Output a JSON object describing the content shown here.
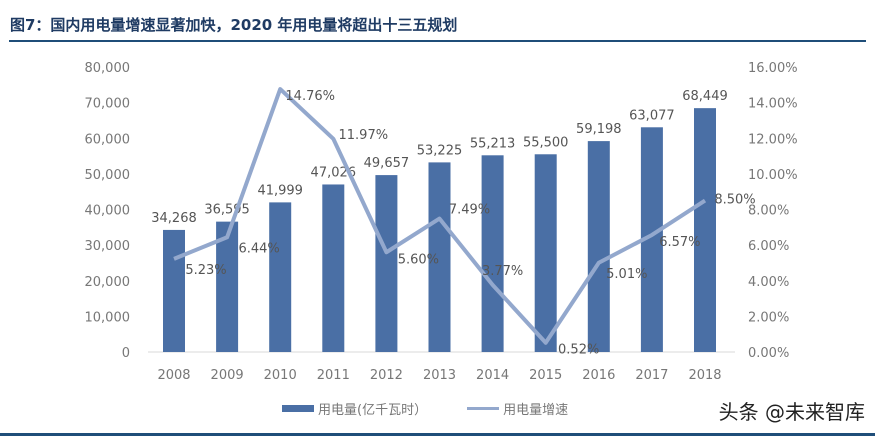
{
  "title": "图7：国内用电量增速显著加快，2020 年用电量将超出十三五规划",
  "watermark": "头条 @未来智库",
  "chart_data": {
    "type": "bar+line",
    "categories": [
      "2008",
      "2009",
      "2010",
      "2011",
      "2012",
      "2013",
      "2014",
      "2015",
      "2016",
      "2017",
      "2018"
    ],
    "series": [
      {
        "name": "用电量(亿千瓦时）",
        "type": "bar",
        "axis": "left",
        "color": "#4a6fa5",
        "values": [
          34268,
          36595,
          41999,
          47026,
          49657,
          53225,
          55213,
          55500,
          59198,
          63077,
          68449
        ],
        "labels": [
          "34,268",
          "36,595",
          "41,999",
          "47,026",
          "49,657",
          "53,225",
          "55,213",
          "55,500",
          "59,198",
          "63,077",
          "68,449"
        ]
      },
      {
        "name": "用电量增速",
        "type": "line",
        "axis": "right",
        "color": "#93a8cd",
        "values": [
          5.23,
          6.44,
          14.76,
          11.97,
          5.6,
          7.49,
          3.77,
          0.52,
          5.01,
          6.57,
          8.5
        ],
        "labels": [
          "5.23%",
          "6.44%",
          "14.76%",
          "11.97%",
          "5.60%",
          "7.49%",
          "3.77%",
          "0.52%",
          "5.01%",
          "6.57%",
          "8.50%"
        ]
      }
    ],
    "y_left": {
      "range": [
        0,
        80000
      ],
      "ticks": [
        "0",
        "10,000",
        "20,000",
        "30,000",
        "40,000",
        "50,000",
        "60,000",
        "70,000",
        "80,000"
      ]
    },
    "y_right": {
      "range": [
        0,
        16
      ],
      "ticks": [
        "0.00%",
        "2.00%",
        "4.00%",
        "6.00%",
        "8.00%",
        "10.00%",
        "12.00%",
        "14.00%",
        "16.00%"
      ]
    },
    "grid": false,
    "legend": "bottom"
  }
}
